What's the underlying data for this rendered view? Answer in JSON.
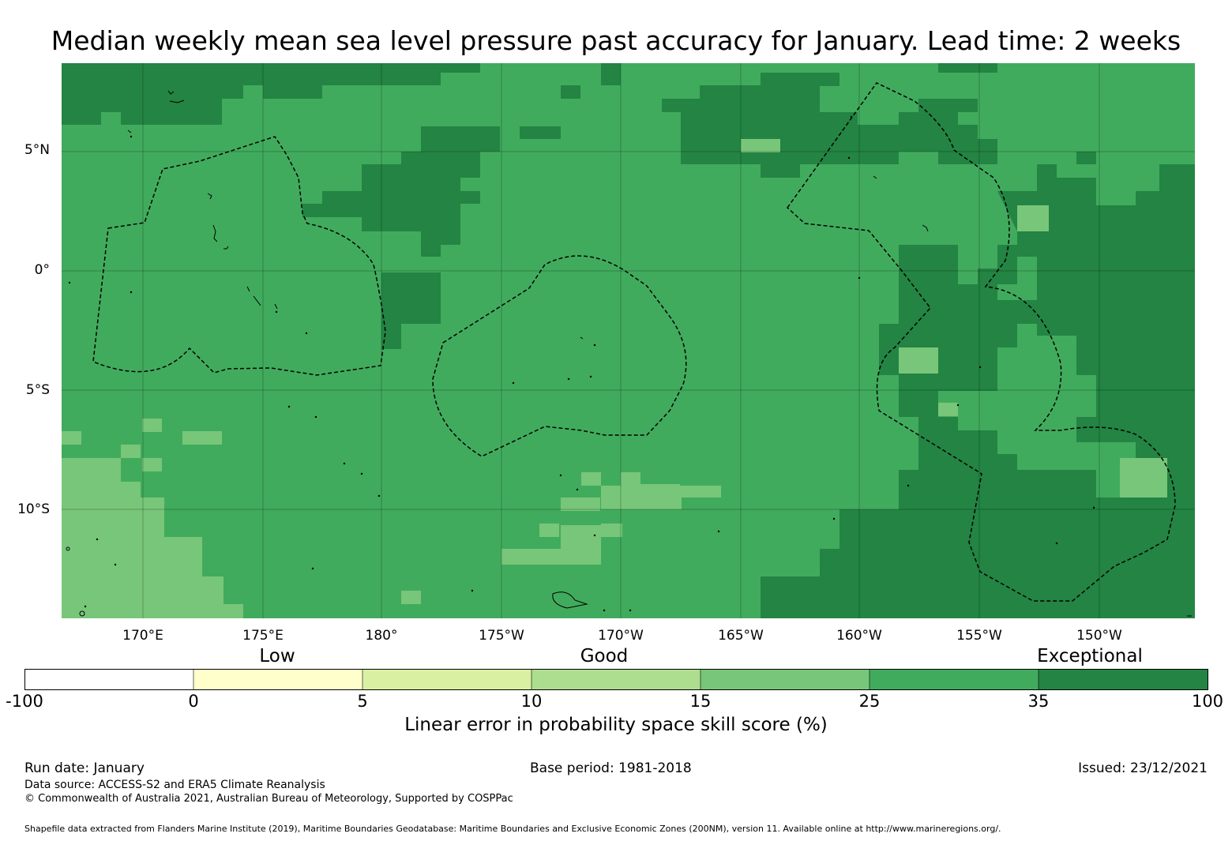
{
  "title": "Median weekly mean sea level pressure past accuracy for January. Lead time: 2 weeks",
  "map": {
    "lat_labels": [
      "5°N",
      "0°",
      "5°S",
      "10°S"
    ],
    "lon_labels": [
      "170°E",
      "175°E",
      "180°",
      "175°W",
      "170°W",
      "165°W",
      "160°W",
      "155°W",
      "150°W"
    ],
    "colors": {
      "skill_15_25": "#78c679",
      "skill_25_35": "#41ab5d",
      "skill_35_100": "#238443"
    }
  },
  "legend": {
    "categories": [
      "Low",
      "Good",
      "Exceptional"
    ],
    "ticks": [
      "-100",
      "0",
      "5",
      "10",
      "15",
      "25",
      "35",
      "100"
    ],
    "colors": [
      "#ffffff",
      "#ffffcc",
      "#d9f0a3",
      "#addd8e",
      "#78c679",
      "#41ab5d",
      "#238443"
    ],
    "label": "Linear error in probability space skill score (%)"
  },
  "footer": {
    "run_date": "Run date: January",
    "base_period": "Base period: 1981-2018",
    "issued": "Issued: 23/12/2021",
    "data_source": "Data source: ACCESS-S2 and ERA5 Climate Reanalysis",
    "copyright": "© Commonwealth of Australia 2021, Australian Bureau of Meteorology, Supported by COSPPac",
    "shapefile": "Shapefile data extracted from Flanders Marine Institute (2019), Maritime Boundaries Geodatabase: Maritime Boundaries and Exclusive Economic Zones (200NM), version 11. Available online at http://www.marineregions.org/."
  }
}
